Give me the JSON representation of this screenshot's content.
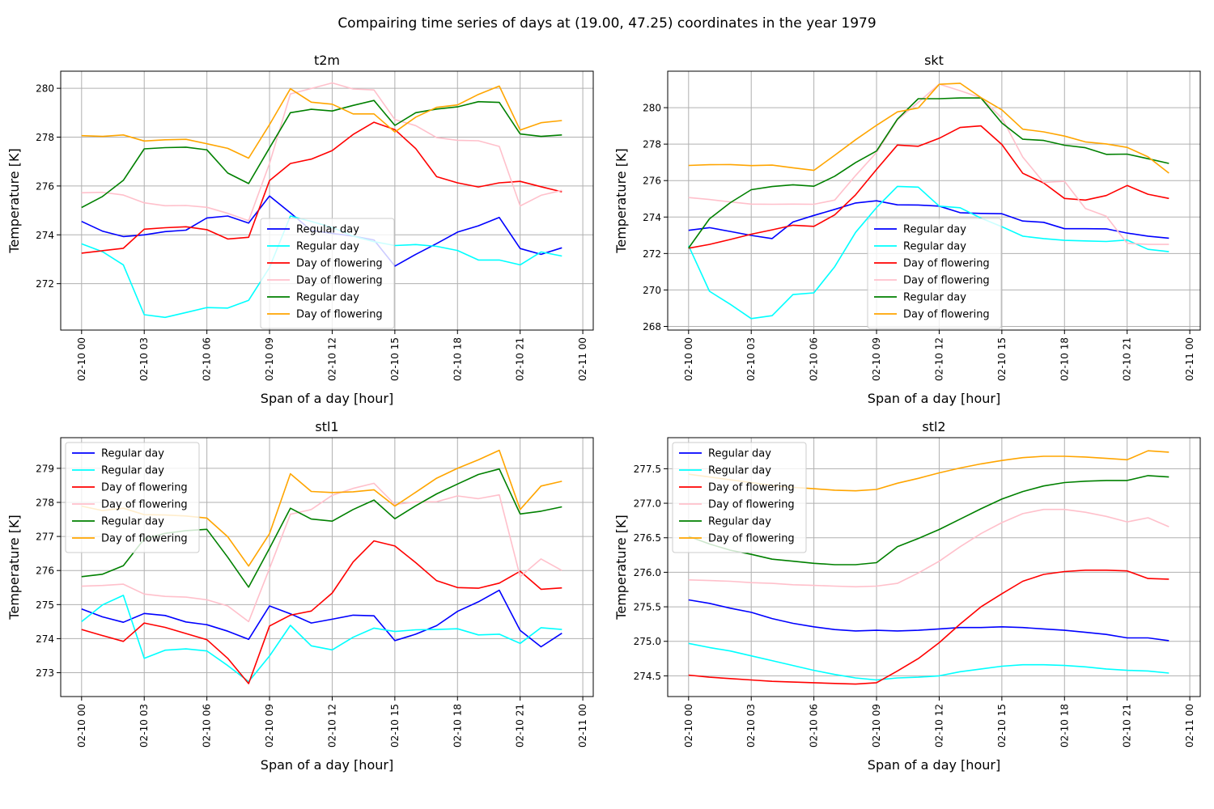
{
  "figure": {
    "suptitle": "Compairing time series of days at (19.00, 47.25) coordinates in the year 1979"
  },
  "chart_data": [
    {
      "type": "line",
      "title": "t2m",
      "xlabel": "Span of a day [hour]",
      "ylabel": "Temperature [K]",
      "grid": true,
      "legend_position": "center",
      "x": [
        0,
        1,
        2,
        3,
        4,
        5,
        6,
        7,
        8,
        9,
        10,
        11,
        12,
        13,
        14,
        15,
        16,
        17,
        18,
        19,
        20,
        21,
        22,
        23
      ],
      "xlim": [
        -1,
        24.5
      ],
      "x_ticks": [
        0,
        3,
        6,
        9,
        12,
        15,
        18,
        21,
        24
      ],
      "x_tick_labels": [
        "02-10 00",
        "02-10 03",
        "02-10 06",
        "02-10 09",
        "02-10 12",
        "02-10 15",
        "02-10 18",
        "02-10 21",
        "02-11 00"
      ],
      "ylim": [
        270.1,
        280.7
      ],
      "y_ticks": [
        272,
        274,
        276,
        278,
        280
      ],
      "y_tick_labels": [
        "272",
        "274",
        "276",
        "278",
        "280"
      ],
      "series": [
        {
          "name": "Regular day",
          "color": "#0000ff",
          "values": [
            274.55,
            274.15,
            273.93,
            274.0,
            274.13,
            274.19,
            274.69,
            274.77,
            274.48,
            275.59,
            274.9,
            274.18,
            274.06,
            273.95,
            273.79,
            272.72,
            273.2,
            273.64,
            274.11,
            274.37,
            274.71,
            273.44,
            273.2,
            273.47
          ]
        },
        {
          "name": "Regular day",
          "color": "#00ffff",
          "values": [
            273.63,
            273.31,
            272.77,
            270.73,
            270.62,
            270.82,
            271.02,
            271.0,
            271.32,
            272.66,
            274.77,
            274.55,
            274.3,
            273.95,
            273.72,
            273.56,
            273.6,
            273.53,
            273.36,
            272.97,
            272.97,
            272.77,
            273.3,
            273.13
          ]
        },
        {
          "name": "Day of flowering",
          "color": "#ff0000",
          "values": [
            273.25,
            273.35,
            273.45,
            274.23,
            274.29,
            274.33,
            274.21,
            273.83,
            273.9,
            276.22,
            276.92,
            277.1,
            277.45,
            278.11,
            278.61,
            278.31,
            277.53,
            276.38,
            276.13,
            275.96,
            276.13,
            276.19,
            275.97,
            275.76
          ]
        },
        {
          "name": "Day of flowering",
          "color": "#ffc0cb",
          "values": [
            275.72,
            275.74,
            275.63,
            275.31,
            275.19,
            275.2,
            275.13,
            274.88,
            274.58,
            276.92,
            279.77,
            279.99,
            280.22,
            279.97,
            279.93,
            278.72,
            278.47,
            277.98,
            277.87,
            277.85,
            277.62,
            275.18,
            275.62,
            275.82
          ]
        },
        {
          "name": "Regular day",
          "color": "#008000",
          "values": [
            275.12,
            275.57,
            276.23,
            277.52,
            277.57,
            277.59,
            277.48,
            276.53,
            276.1,
            277.56,
            279.0,
            279.14,
            279.07,
            279.3,
            279.5,
            278.48,
            279.0,
            279.15,
            279.24,
            279.45,
            279.42,
            278.13,
            278.03,
            278.09
          ]
        },
        {
          "name": "Day of flowering",
          "color": "#ffa500",
          "values": [
            278.06,
            278.03,
            278.09,
            277.84,
            277.89,
            277.91,
            277.73,
            277.54,
            277.14,
            278.51,
            279.98,
            279.43,
            279.35,
            278.95,
            278.95,
            278.21,
            278.82,
            279.22,
            279.32,
            279.75,
            280.09,
            278.29,
            278.59,
            278.68
          ]
        }
      ]
    },
    {
      "type": "line",
      "title": "skt",
      "xlabel": "Span of a day [hour]",
      "ylabel": "Temperature [K]",
      "grid": true,
      "legend_position": "center",
      "x": [
        0,
        1,
        2,
        3,
        4,
        5,
        6,
        7,
        8,
        9,
        10,
        11,
        12,
        13,
        14,
        15,
        16,
        17,
        18,
        19,
        20,
        21,
        22,
        23
      ],
      "xlim": [
        -1,
        24.5
      ],
      "x_ticks": [
        0,
        3,
        6,
        9,
        12,
        15,
        18,
        21,
        24
      ],
      "x_tick_labels": [
        "02-10 00",
        "02-10 03",
        "02-10 06",
        "02-10 09",
        "02-10 12",
        "02-10 15",
        "02-10 18",
        "02-10 21",
        "02-11 00"
      ],
      "ylim": [
        267.8,
        282.0
      ],
      "y_ticks": [
        268,
        270,
        272,
        274,
        276,
        278,
        280
      ],
      "y_tick_labels": [
        "268",
        "270",
        "272",
        "274",
        "276",
        "278",
        "280"
      ],
      "series": [
        {
          "name": "Regular day",
          "color": "#0000ff",
          "values": [
            273.27,
            273.42,
            273.21,
            272.99,
            272.82,
            273.73,
            274.09,
            274.42,
            274.77,
            274.89,
            274.67,
            274.66,
            274.6,
            274.24,
            274.2,
            274.18,
            273.78,
            273.71,
            273.36,
            273.36,
            273.35,
            273.12,
            272.95,
            272.84
          ]
        },
        {
          "name": "Regular day",
          "color": "#00ffff",
          "values": [
            272.43,
            269.93,
            269.21,
            268.43,
            268.59,
            269.75,
            269.84,
            271.28,
            273.16,
            274.52,
            275.68,
            275.64,
            274.6,
            274.51,
            273.94,
            273.47,
            272.95,
            272.82,
            272.72,
            272.69,
            272.66,
            272.74,
            272.23,
            272.1
          ]
        },
        {
          "name": "Day of flowering",
          "color": "#ff0000",
          "values": [
            272.29,
            272.5,
            272.77,
            273.06,
            273.3,
            273.55,
            273.49,
            274.12,
            275.22,
            276.61,
            277.95,
            277.88,
            278.32,
            278.91,
            279.0,
            277.98,
            276.4,
            275.87,
            275.02,
            274.93,
            275.18,
            275.73,
            275.25,
            275.02
          ]
        },
        {
          "name": "Day of flowering",
          "color": "#ffc0cb",
          "values": [
            275.07,
            274.96,
            274.83,
            274.71,
            274.7,
            274.71,
            274.7,
            274.93,
            276.28,
            277.54,
            279.33,
            280.29,
            281.29,
            280.93,
            280.54,
            279.43,
            277.29,
            275.9,
            275.96,
            274.47,
            274.05,
            272.56,
            272.5,
            272.5
          ]
        },
        {
          "name": "Regular day",
          "color": "#008000",
          "values": [
            272.3,
            273.9,
            274.79,
            275.5,
            275.67,
            275.77,
            275.69,
            276.24,
            276.99,
            277.62,
            279.37,
            280.49,
            280.49,
            280.53,
            280.53,
            279.16,
            278.27,
            278.2,
            277.94,
            277.8,
            277.44,
            277.45,
            277.2,
            276.94
          ]
        },
        {
          "name": "Day of flowering",
          "color": "#ffa500",
          "values": [
            276.83,
            276.87,
            276.88,
            276.82,
            276.85,
            276.7,
            276.56,
            277.39,
            278.24,
            279.03,
            279.77,
            279.98,
            281.28,
            281.34,
            280.55,
            279.88,
            278.82,
            278.67,
            278.44,
            278.12,
            278.01,
            277.82,
            277.3,
            276.41
          ]
        }
      ]
    },
    {
      "type": "line",
      "title": "stl1",
      "xlabel": "Span of a day [hour]",
      "ylabel": "Temperature [K]",
      "grid": true,
      "legend_position": "upper left",
      "x": [
        0,
        1,
        2,
        3,
        4,
        5,
        6,
        7,
        8,
        9,
        10,
        11,
        12,
        13,
        14,
        15,
        16,
        17,
        18,
        19,
        20,
        21,
        22,
        23
      ],
      "xlim": [
        -1,
        24.5
      ],
      "x_ticks": [
        0,
        3,
        6,
        9,
        12,
        15,
        18,
        21,
        24
      ],
      "x_tick_labels": [
        "02-10 00",
        "02-10 03",
        "02-10 06",
        "02-10 09",
        "02-10 12",
        "02-10 15",
        "02-10 18",
        "02-10 21",
        "02-11 00"
      ],
      "ylim": [
        272.3,
        279.9
      ],
      "y_ticks": [
        273,
        274,
        275,
        276,
        277,
        278,
        279
      ],
      "y_tick_labels": [
        "273",
        "274",
        "275",
        "276",
        "277",
        "278",
        "279"
      ],
      "series": [
        {
          "name": "Regular day",
          "color": "#0000ff",
          "values": [
            274.87,
            274.64,
            274.48,
            274.74,
            274.68,
            274.49,
            274.41,
            274.22,
            273.98,
            274.96,
            274.73,
            274.46,
            274.57,
            274.69,
            274.67,
            273.94,
            274.13,
            274.38,
            274.8,
            275.08,
            275.42,
            274.24,
            273.76,
            274.16
          ]
        },
        {
          "name": "Regular day",
          "color": "#00ffff",
          "values": [
            274.5,
            274.99,
            275.27,
            273.42,
            273.66,
            273.7,
            273.64,
            273.21,
            272.74,
            273.49,
            274.39,
            273.79,
            273.67,
            274.04,
            274.31,
            274.21,
            274.26,
            274.27,
            274.29,
            274.11,
            274.13,
            273.86,
            274.32,
            274.27
          ]
        },
        {
          "name": "Day of flowering",
          "color": "#ff0000",
          "values": [
            274.27,
            274.09,
            273.92,
            274.46,
            274.33,
            274.15,
            273.97,
            273.42,
            272.68,
            274.37,
            274.69,
            274.81,
            275.34,
            276.25,
            276.87,
            276.72,
            276.23,
            275.7,
            275.5,
            275.48,
            275.63,
            275.98,
            275.45,
            275.49
          ]
        },
        {
          "name": "Day of flowering",
          "color": "#ffc0cb",
          "values": [
            275.54,
            275.56,
            275.6,
            275.31,
            275.24,
            275.22,
            275.14,
            274.96,
            274.5,
            276.06,
            277.65,
            277.79,
            278.21,
            278.41,
            278.56,
            277.94,
            278.01,
            278.02,
            278.19,
            278.11,
            278.22,
            275.82,
            276.34,
            276.0
          ]
        },
        {
          "name": "Regular day",
          "color": "#008000",
          "values": [
            275.82,
            275.89,
            276.14,
            276.93,
            277.09,
            277.17,
            277.21,
            276.39,
            275.51,
            276.65,
            277.83,
            277.51,
            277.45,
            277.79,
            278.07,
            277.52,
            277.9,
            278.25,
            278.54,
            278.82,
            278.98,
            277.66,
            277.74,
            277.87
          ]
        },
        {
          "name": "Day of flowering",
          "color": "#ffa500",
          "values": [
            277.89,
            277.76,
            277.83,
            277.64,
            277.63,
            277.6,
            277.54,
            276.99,
            276.13,
            277.08,
            278.84,
            278.32,
            278.29,
            278.31,
            278.37,
            277.89,
            278.3,
            278.71,
            279.0,
            279.25,
            279.53,
            277.79,
            278.48,
            278.62
          ]
        }
      ]
    },
    {
      "type": "line",
      "title": "stl2",
      "xlabel": "Span of a day [hour]",
      "ylabel": "Temperature [K]",
      "grid": true,
      "legend_position": "upper left",
      "x": [
        0,
        1,
        2,
        3,
        4,
        5,
        6,
        7,
        8,
        9,
        10,
        11,
        12,
        13,
        14,
        15,
        16,
        17,
        18,
        19,
        20,
        21,
        22,
        23
      ],
      "xlim": [
        -1,
        24.5
      ],
      "x_ticks": [
        0,
        3,
        6,
        9,
        12,
        15,
        18,
        21,
        24
      ],
      "x_tick_labels": [
        "02-10 00",
        "02-10 03",
        "02-10 06",
        "02-10 09",
        "02-10 12",
        "02-10 15",
        "02-10 18",
        "02-10 21",
        "02-11 00"
      ],
      "ylim": [
        274.2,
        277.95
      ],
      "y_ticks": [
        274.5,
        275.0,
        275.5,
        276.0,
        276.5,
        277.0,
        277.5
      ],
      "y_tick_labels": [
        "274.5",
        "275.0",
        "275.5",
        "276.0",
        "276.5",
        "277.0",
        "277.5"
      ],
      "series": [
        {
          "name": "Regular day",
          "color": "#0000ff",
          "values": [
            275.6,
            275.55,
            275.48,
            275.42,
            275.33,
            275.26,
            275.21,
            275.17,
            275.15,
            275.16,
            275.15,
            275.16,
            275.18,
            275.2,
            275.2,
            275.21,
            275.2,
            275.18,
            275.16,
            275.13,
            275.1,
            275.05,
            275.05,
            275.01
          ]
        },
        {
          "name": "Regular day",
          "color": "#00ffff",
          "values": [
            274.97,
            274.91,
            274.86,
            274.79,
            274.72,
            274.65,
            274.58,
            274.52,
            274.47,
            274.44,
            274.47,
            274.48,
            274.5,
            274.56,
            274.6,
            274.64,
            274.66,
            274.66,
            274.65,
            274.63,
            274.6,
            274.58,
            274.57,
            274.54
          ]
        },
        {
          "name": "Day of flowering",
          "color": "#ff0000",
          "values": [
            274.51,
            274.48,
            274.46,
            274.44,
            274.42,
            274.41,
            274.4,
            274.39,
            274.38,
            274.4,
            274.57,
            274.75,
            274.98,
            275.25,
            275.5,
            275.69,
            275.87,
            275.97,
            276.01,
            276.03,
            276.03,
            276.02,
            275.91,
            275.9
          ]
        },
        {
          "name": "Day of flowering",
          "color": "#ffc0cb",
          "values": [
            275.89,
            275.88,
            275.87,
            275.85,
            275.84,
            275.82,
            275.81,
            275.8,
            275.79,
            275.8,
            275.84,
            275.99,
            276.16,
            276.37,
            276.56,
            276.72,
            276.85,
            276.91,
            276.91,
            276.87,
            276.81,
            276.73,
            276.79,
            276.66
          ]
        },
        {
          "name": "Regular day",
          "color": "#008000",
          "values": [
            276.52,
            276.41,
            276.32,
            276.26,
            276.19,
            276.16,
            276.13,
            276.11,
            276.11,
            276.14,
            276.37,
            276.49,
            276.62,
            276.77,
            276.92,
            277.06,
            277.17,
            277.25,
            277.3,
            277.32,
            277.33,
            277.33,
            277.4,
            277.38
          ]
        },
        {
          "name": "Day of flowering",
          "color": "#ffa500",
          "values": [
            277.42,
            277.38,
            277.34,
            277.3,
            277.26,
            277.23,
            277.21,
            277.19,
            277.18,
            277.2,
            277.29,
            277.36,
            277.44,
            277.51,
            277.57,
            277.62,
            277.66,
            277.68,
            277.68,
            277.67,
            277.65,
            277.63,
            277.76,
            277.74
          ]
        }
      ]
    }
  ]
}
